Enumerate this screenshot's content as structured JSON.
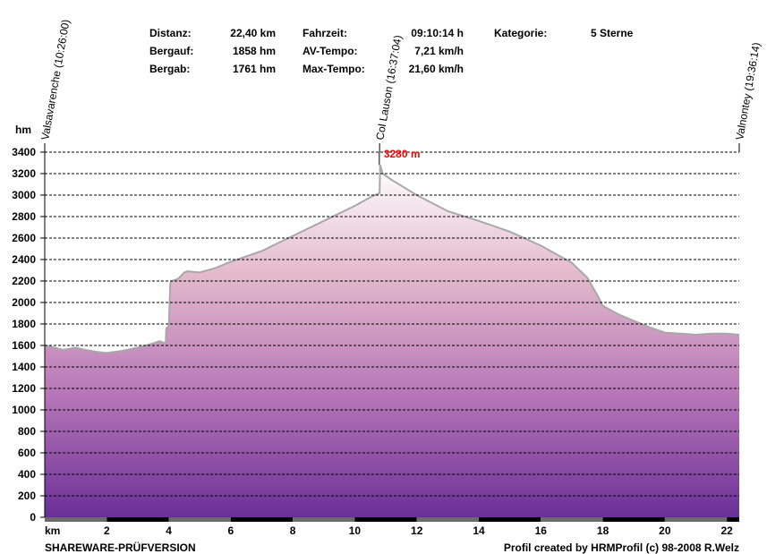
{
  "stats": {
    "distanz_label": "Distanz:",
    "distanz_value": "22,40 km",
    "bergauf_label": "Bergauf:",
    "bergauf_value": "1858 hm",
    "bergab_label": "Bergab:",
    "bergab_value": "1761 hm",
    "fahrzeit_label": "Fahrzeit:",
    "fahrzeit_value": "09:10:14 h",
    "avtempo_label": "AV-Tempo:",
    "avtempo_value": "7,21 km/h",
    "maxtempo_label": "Max-Tempo:",
    "maxtempo_value": "21,60 km/h",
    "kategorie_label": "Kategorie:",
    "kategorie_value": "5 Sterne"
  },
  "footer": {
    "left": "SHAREWARE-PRÜFVERSION",
    "right": "Profil created by HRMProfil (c) 98-2008 R.Welz"
  },
  "chart_data": {
    "type": "area",
    "ylabel": "hm",
    "xlabel": "km",
    "xlim": [
      0,
      22.4
    ],
    "ylim": [
      0,
      3400
    ],
    "yticks": [
      0,
      200,
      400,
      600,
      800,
      1000,
      1200,
      1400,
      1600,
      1800,
      2000,
      2200,
      2400,
      2600,
      2800,
      3000,
      3200,
      3400
    ],
    "xticks": [
      2,
      4,
      6,
      8,
      10,
      12,
      14,
      16,
      18,
      20,
      22
    ],
    "grid": "horizontal dashed",
    "colors": {
      "fill_top": "#ffffff",
      "fill_bottom": "#6a2f96",
      "outline": "#a8a8a8",
      "peak_label": "#ff0000"
    },
    "peak_label": "3280 m",
    "waypoints": [
      {
        "name": "Valsavarenche (10:26:00)",
        "km": 0
      },
      {
        "name": "Col Lauson (16:37:04)",
        "km": 10.8
      },
      {
        "name": "Valnontey (19:36:14)",
        "km": 22.4
      }
    ],
    "x": [
      0,
      0.3,
      0.6,
      1.0,
      1.3,
      1.7,
      2.0,
      2.5,
      3.0,
      3.5,
      3.7,
      3.9,
      3.92,
      4.0,
      4.05,
      4.1,
      4.3,
      4.5,
      4.6,
      5.0,
      5.5,
      6.0,
      7.0,
      8.0,
      9.0,
      10.0,
      10.5,
      10.8,
      10.82,
      10.9,
      11.2,
      12.0,
      13.0,
      14.0,
      15.0,
      16.0,
      17.0,
      17.5,
      17.8,
      18.0,
      18.5,
      19.0,
      19.5,
      20.0,
      20.5,
      21.0,
      21.5,
      22.0,
      22.4
    ],
    "y": [
      1600,
      1580,
      1560,
      1580,
      1560,
      1540,
      1530,
      1550,
      1580,
      1620,
      1640,
      1620,
      1760,
      1780,
      2180,
      2200,
      2220,
      2280,
      2290,
      2280,
      2320,
      2380,
      2480,
      2620,
      2760,
      2900,
      2980,
      3020,
      3280,
      3200,
      3140,
      3000,
      2850,
      2760,
      2660,
      2530,
      2370,
      2230,
      2080,
      1970,
      1890,
      1830,
      1770,
      1720,
      1710,
      1700,
      1710,
      1710,
      1700
    ]
  }
}
